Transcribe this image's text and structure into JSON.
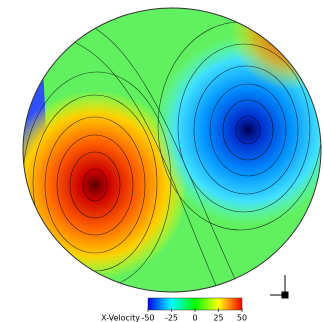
{
  "chart_data": {
    "type": "contour",
    "colorbar": {
      "label": "X-Velocity",
      "lim": [
        -50,
        50
      ],
      "ticks": [
        -50,
        -25,
        0,
        25,
        50
      ],
      "colors": [
        "#0000ff",
        "#00ffff",
        "#00ff00",
        "#ffff00",
        "#ff0000"
      ]
    }
  }
}
